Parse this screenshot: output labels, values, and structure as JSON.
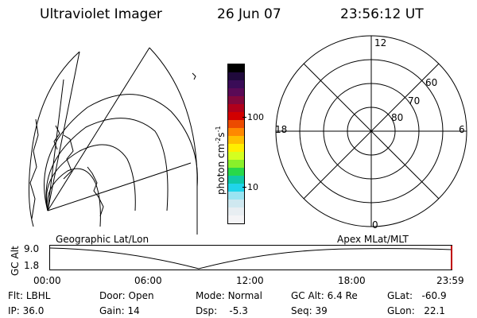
{
  "header": {
    "instrument": "Ultraviolet Imager",
    "date": "26 Jun 07",
    "time": "23:56:12 UT"
  },
  "colorbar": {
    "label": "photon cm",
    "label_sup1": "-2",
    "label_mid": "s",
    "label_sup2": "-1",
    "ticks": [
      "100",
      "10"
    ],
    "colors": [
      "#000000",
      "#200a3c",
      "#3a0c57",
      "#5a0a56",
      "#82083c",
      "#b0001c",
      "#d20000",
      "#ec4b00",
      "#ff8800",
      "#ffbf00",
      "#ffee00",
      "#d4ff20",
      "#8af02a",
      "#28d84a",
      "#10c9a8",
      "#20d4ea",
      "#9ae4f2",
      "#cfe8f0",
      "#e8eef2",
      "#f4f4f6"
    ]
  },
  "geo_map": {
    "label": "Geographic Lat/Lon"
  },
  "polar_plot": {
    "label": "Apex MLat/MLT",
    "mlt_labels": [
      "12",
      "18",
      "6",
      "0"
    ],
    "lat_labels": [
      "60",
      "70",
      "80"
    ]
  },
  "altitude_strip": {
    "axis_label": "GC Alt",
    "ymax": "9.0",
    "ymin": "1.8",
    "time_ticks": [
      "00:00",
      "06:00",
      "12:00",
      "18:00",
      "23:59"
    ]
  },
  "status": {
    "flt_key": "Flt:",
    "flt_val": "LBHL",
    "ip_key": "IP:",
    "ip_val": "36.0",
    "door_key": "Door:",
    "door_val": "Open",
    "gain_key": "Gain:",
    "gain_val": "14",
    "mode_key": "Mode:",
    "mode_val": "Normal",
    "dsp_key": "Dsp:",
    "dsp_val": "-5.3",
    "gcalt_key": "GC Alt:",
    "gcalt_val": "6.4 Re",
    "seq_key": "Seq:",
    "seq_val": "39",
    "glat_key": "GLat:",
    "glat_val": "-60.9",
    "glon_key": "GLon:",
    "glon_val": "22.1"
  }
}
